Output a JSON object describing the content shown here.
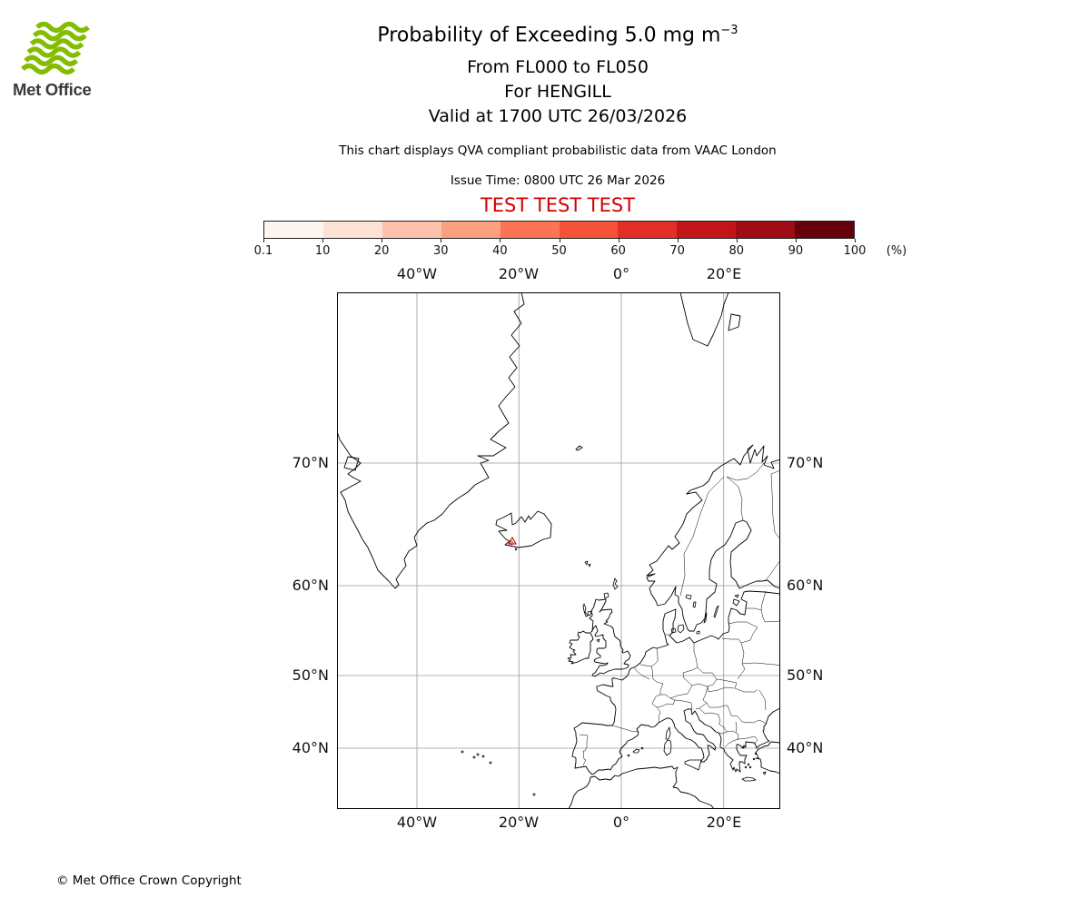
{
  "logo": {
    "text": "Met Office"
  },
  "header": {
    "title": "Probability of Exceeding 5.0 mg m",
    "title_sup": "−3",
    "flight_levels": "From FL000 to FL050",
    "site": "For HENGILL",
    "valid": "Valid at 1700 UTC 26/03/2026",
    "note": "This chart displays QVA compliant probabilistic data from VAAC London",
    "issue_time": "Issue Time: 0800 UTC 26 Mar 2026",
    "test_banner": "TEST TEST TEST"
  },
  "colors": {
    "test_red": "#d40000",
    "met_office_green": "#84bd00",
    "marker_red": "#cc0000"
  },
  "colorbar": {
    "tick_labels": [
      "0.1",
      "10",
      "20",
      "30",
      "40",
      "50",
      "60",
      "70",
      "80",
      "90",
      "100"
    ],
    "unit": "(%)",
    "colors": [
      "#fff5f0",
      "#fee2d5",
      "#fcc2ab",
      "#fca082",
      "#fb7555",
      "#f5523a",
      "#e32e27",
      "#c2151a",
      "#9e0c14",
      "#67000d"
    ]
  },
  "map": {
    "lon_labels": [
      "40°W",
      "20°W",
      "0°",
      "20°E"
    ],
    "lat_labels": [
      "70°N",
      "60°N",
      "50°N",
      "40°N"
    ],
    "marker_site": "HENGILL"
  },
  "footer": {
    "copyright": "© Met Office Crown Copyright"
  },
  "chart_data": {
    "type": "heatmap",
    "title": "Probability of Exceeding 5.0 mg m−3",
    "subtitle": [
      "From FL000 to FL050",
      "For HENGILL",
      "Valid at 1700 UTC 26/03/2026"
    ],
    "legend_levels_percent": [
      0.1,
      10,
      20,
      30,
      40,
      50,
      60,
      70,
      80,
      90,
      100
    ],
    "legend_unit": "%",
    "x_tick_labels": [
      "40°W",
      "20°W",
      "0°",
      "20°E"
    ],
    "y_tick_labels": [
      "70°N",
      "60°N",
      "50°N",
      "40°N"
    ],
    "values_note": "probability contour visible only as a tiny area at the HENGILL volcano site in southwest Iceland"
  }
}
